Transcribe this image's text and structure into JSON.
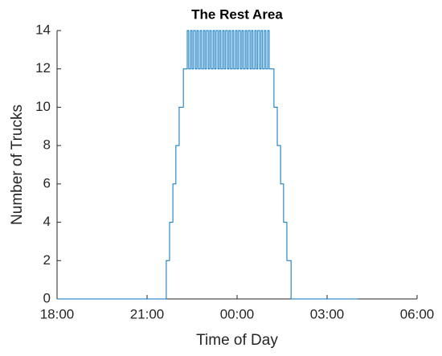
{
  "chart_data": {
    "type": "line",
    "title": "The Rest Area",
    "xlabel": "Time of Day",
    "ylabel": "Number of Trucks",
    "step": true,
    "x": [
      18,
      21.64,
      21.75,
      21.86,
      21.96,
      22.07,
      22.21,
      22.34,
      22.39,
      22.45,
      22.5,
      22.55,
      22.61,
      22.66,
      22.71,
      22.77,
      22.82,
      22.88,
      22.93,
      22.98,
      23.04,
      23.09,
      23.14,
      23.2,
      23.25,
      23.3,
      23.36,
      23.41,
      23.46,
      23.52,
      23.57,
      23.62,
      23.68,
      23.73,
      23.78,
      23.84,
      23.89,
      23.95,
      24.0,
      24.05,
      24.11,
      24.16,
      24.21,
      24.27,
      24.32,
      24.37,
      24.43,
      24.48,
      24.53,
      24.59,
      24.64,
      24.69,
      24.75,
      24.8,
      24.85,
      24.91,
      24.96,
      25.02,
      25.07,
      25.23,
      25.34,
      25.45,
      25.55,
      25.66,
      25.8,
      28.02
    ],
    "series": [
      {
        "color": "#0072bd",
        "values": [
          0,
          2,
          4,
          6,
          8,
          10,
          12,
          14,
          12,
          14,
          12,
          14,
          12,
          14,
          12,
          14,
          12,
          14,
          12,
          14,
          12,
          14,
          12,
          14,
          12,
          14,
          12,
          14,
          12,
          14,
          12,
          14,
          12,
          14,
          12,
          14,
          12,
          14,
          12,
          14,
          12,
          14,
          12,
          14,
          12,
          14,
          12,
          14,
          12,
          14,
          12,
          14,
          12,
          14,
          12,
          14,
          12,
          14,
          12,
          10,
          8,
          6,
          4,
          2,
          0,
          0
        ]
      }
    ],
    "xlim": [
      18,
      30
    ],
    "xticks": [
      {
        "value": 18,
        "label": "18:00"
      },
      {
        "value": 21,
        "label": "21:00"
      },
      {
        "value": 24,
        "label": "00:00"
      },
      {
        "value": 27,
        "label": "03:00"
      },
      {
        "value": 30,
        "label": "06:00"
      }
    ],
    "ylim": [
      0,
      14
    ],
    "yticks": [
      0,
      2,
      4,
      6,
      8,
      10,
      12,
      14
    ]
  }
}
